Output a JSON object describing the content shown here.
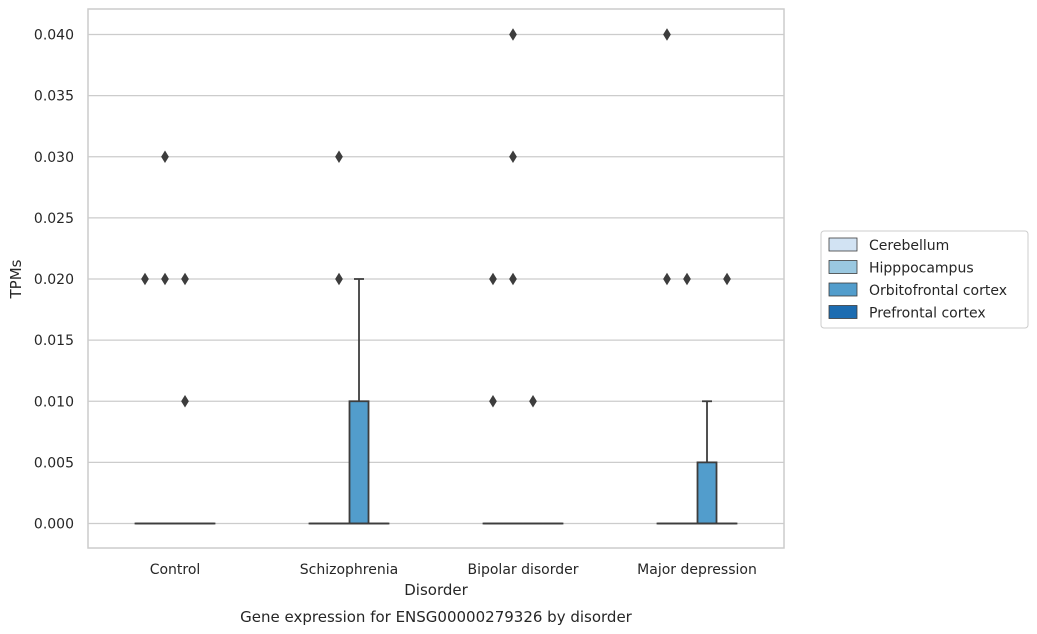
{
  "chart_data": {
    "type": "box",
    "title": "Gene expression for ENSG00000279326 by disorder",
    "xlabel": "Disorder",
    "ylabel": "TPMs",
    "ylim": [
      -0.002,
      0.0415
    ],
    "yticks": [
      0.0,
      0.005,
      0.01,
      0.015,
      0.02,
      0.025,
      0.03,
      0.035,
      0.04
    ],
    "ytick_labels": [
      "0.000",
      "0.005",
      "0.010",
      "0.015",
      "0.020",
      "0.025",
      "0.030",
      "0.035",
      "0.040"
    ],
    "grid": "horizontal",
    "legend_placement": "right",
    "categories": [
      "Control",
      "Schizophrenia",
      "Bipolar disorder",
      "Major depression"
    ],
    "series": [
      {
        "name": "Cerebellum",
        "color": "#d2e3f3",
        "boxes": [
          {
            "q1": 0,
            "median": 0,
            "q3": 0,
            "whislo": 0,
            "whishi": 0,
            "fliers": [
              0.02
            ]
          },
          {
            "q1": 0,
            "median": 0,
            "q3": 0,
            "whislo": 0,
            "whishi": 0,
            "fliers": []
          },
          {
            "q1": 0,
            "median": 0,
            "q3": 0,
            "whislo": 0,
            "whishi": 0,
            "fliers": [
              0.02,
              0.01
            ]
          },
          {
            "q1": 0,
            "median": 0,
            "q3": 0,
            "whislo": 0,
            "whishi": 0,
            "fliers": [
              0.04,
              0.02
            ]
          }
        ]
      },
      {
        "name": "Hipppocampus",
        "color": "#9ac8e0",
        "boxes": [
          {
            "q1": 0,
            "median": 0,
            "q3": 0,
            "whislo": 0,
            "whishi": 0,
            "fliers": [
              0.03,
              0.02
            ]
          },
          {
            "q1": 0,
            "median": 0,
            "q3": 0,
            "whislo": 0,
            "whishi": 0,
            "fliers": [
              0.03,
              0.02
            ]
          },
          {
            "q1": 0,
            "median": 0,
            "q3": 0,
            "whislo": 0,
            "whishi": 0,
            "fliers": [
              0.04,
              0.03,
              0.02
            ]
          },
          {
            "q1": 0,
            "median": 0,
            "q3": 0,
            "whislo": 0,
            "whishi": 0,
            "fliers": [
              0.02
            ]
          }
        ]
      },
      {
        "name": "Orbitofrontal cortex",
        "color": "#529dcc",
        "boxes": [
          {
            "q1": 0,
            "median": 0,
            "q3": 0,
            "whislo": 0,
            "whishi": 0,
            "fliers": [
              0.02,
              0.01
            ]
          },
          {
            "q1": 0,
            "median": 0,
            "q3": 0.01,
            "whislo": 0,
            "whishi": 0.02,
            "fliers": []
          },
          {
            "q1": 0,
            "median": 0,
            "q3": 0,
            "whislo": 0,
            "whishi": 0,
            "fliers": [
              0.01
            ]
          },
          {
            "q1": 0,
            "median": 0,
            "q3": 0.005,
            "whislo": 0,
            "whishi": 0.01,
            "fliers": []
          }
        ]
      },
      {
        "name": "Prefrontal cortex",
        "color": "#1c6cb1",
        "boxes": [
          {
            "q1": 0,
            "median": 0,
            "q3": 0,
            "whislo": 0,
            "whishi": 0,
            "fliers": []
          },
          {
            "q1": 0,
            "median": 0,
            "q3": 0,
            "whislo": 0,
            "whishi": 0,
            "fliers": []
          },
          {
            "q1": 0,
            "median": 0,
            "q3": 0,
            "whislo": 0,
            "whishi": 0,
            "fliers": []
          },
          {
            "q1": 0,
            "median": 0,
            "q3": 0,
            "whislo": 0,
            "whishi": 0,
            "fliers": [
              0.02
            ]
          }
        ]
      }
    ]
  }
}
